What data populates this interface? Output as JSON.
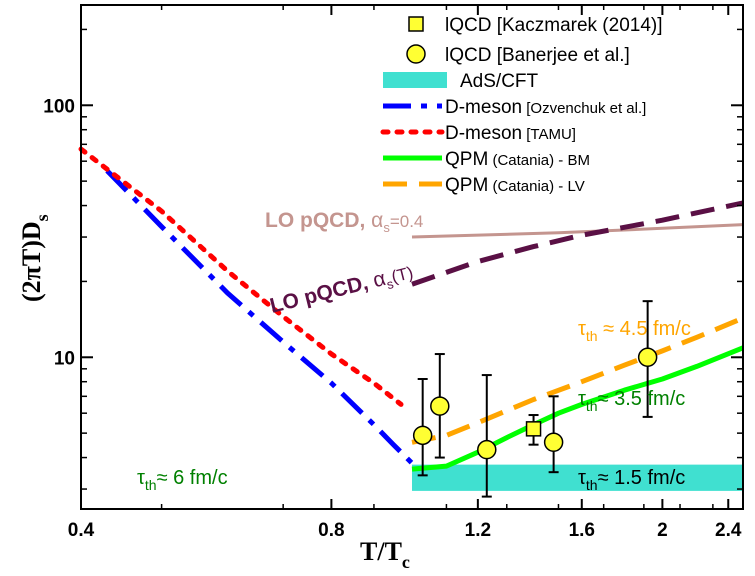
{
  "chart_data": {
    "type": "line",
    "title": "",
    "xlabel": "T/T",
    "xlabel_sub": "c",
    "ylabel": "(2πT)D",
    "ylabel_sub": "s",
    "xscale": "log",
    "yscale": "log",
    "xlim": [
      0.4,
      2.5
    ],
    "ylim": [
      2.5,
      250
    ],
    "x_ticks": [
      0.4,
      0.8,
      1.2,
      1.6,
      2.0,
      2.4
    ],
    "x_tick_labels": [
      "0.4",
      "0.8",
      "1.2",
      "1.6",
      "2",
      "2.4"
    ],
    "y_ticks": [
      10,
      100
    ],
    "y_tick_labels": [
      "10",
      "100"
    ],
    "legend_position": "top-right",
    "legend": [
      {
        "key": "kaczmarek",
        "label": "lQCD [Kaczmarek (2014)]",
        "marker": "square",
        "color": "#ffff33"
      },
      {
        "key": "banerjee",
        "label": "lQCD [Banerjee et al.]",
        "marker": "circle",
        "color": "#ffff33"
      },
      {
        "key": "ads",
        "label": "AdS/CFT",
        "marker": "band",
        "color": "#40e0d0"
      },
      {
        "key": "dmeson_oz",
        "label": "D-meson",
        "label_small": "[Ozvenchuk et al.]",
        "style": "dashdot",
        "color": "#0000ff"
      },
      {
        "key": "dmeson_tamu",
        "label": "D-meson",
        "label_small": "[TAMU]",
        "style": "dotted",
        "color": "#ff0000"
      },
      {
        "key": "qpm_bm",
        "label": "QPM",
        "label_small": "(Catania) - BM",
        "style": "solid",
        "color": "#00ff00"
      },
      {
        "key": "qpm_lv",
        "label": "QPM",
        "label_small": "(Catania) - LV",
        "style": "dashed",
        "color": "#ffa500"
      }
    ],
    "series": [
      {
        "name": "lQCD [Kaczmarek (2014)]",
        "type": "scatter",
        "marker": "square",
        "points": [
          {
            "x": 1.4,
            "y": 5.2,
            "ylo": 4.5,
            "yhi": 5.9
          }
        ]
      },
      {
        "name": "lQCD [Banerjee et al.]",
        "type": "scatter",
        "marker": "circle",
        "points": [
          {
            "x": 1.03,
            "y": 4.9,
            "ylo": 3.4,
            "yhi": 8.2
          },
          {
            "x": 1.08,
            "y": 6.4,
            "ylo": 4.0,
            "yhi": 10.3
          },
          {
            "x": 1.23,
            "y": 4.3,
            "ylo": 2.8,
            "yhi": 8.5
          },
          {
            "x": 1.48,
            "y": 4.6,
            "ylo": 3.5,
            "yhi": 7.0
          },
          {
            "x": 1.92,
            "y": 10.0,
            "ylo": 5.8,
            "yhi": 16.7
          }
        ]
      },
      {
        "name": "AdS/CFT",
        "type": "band",
        "color": "#40e0d0",
        "x": [
          1.0,
          2.5
        ],
        "ylo": 2.95,
        "yhi": 3.75
      },
      {
        "name": "D-meson [Ozvenchuk et al.]",
        "type": "line",
        "style": "dashdot",
        "color": "#0000ff",
        "x": [
          0.43,
          0.5,
          0.6,
          0.7,
          0.8,
          0.9,
          0.95,
          1.0
        ],
        "y": [
          55,
          33,
          18,
          11.5,
          7.9,
          5.4,
          4.5,
          3.8
        ]
      },
      {
        "name": "D-meson [TAMU]",
        "type": "line",
        "style": "dotted",
        "color": "#ff0000",
        "x": [
          0.4,
          0.5,
          0.6,
          0.7,
          0.8,
          0.9,
          0.97
        ],
        "y": [
          67,
          38,
          22,
          14.5,
          10.3,
          7.9,
          6.5
        ]
      },
      {
        "name": "QPM (Catania) - BM",
        "type": "line",
        "style": "solid",
        "color": "#00ff00",
        "x": [
          1.0,
          1.1,
          1.2,
          1.3,
          1.4,
          1.5,
          1.6,
          1.8,
          2.0,
          2.2,
          2.5
        ],
        "y": [
          3.6,
          3.7,
          4.2,
          4.8,
          5.4,
          6.0,
          6.5,
          7.4,
          8.2,
          9.2,
          10.9
        ]
      },
      {
        "name": "QPM (Catania) - LV",
        "type": "line",
        "style": "dashed",
        "color": "#ffa500",
        "x": [
          1.0,
          1.1,
          1.2,
          1.4,
          1.6,
          1.8,
          2.0,
          2.2,
          2.5
        ],
        "y": [
          4.6,
          4.9,
          5.5,
          6.8,
          8.0,
          9.3,
          10.6,
          12.0,
          14.3
        ]
      },
      {
        "name": "LO pQCD, αs=0.4",
        "type": "line",
        "style": "solid",
        "color": "#c4958f",
        "x": [
          1.0,
          1.5,
          2.0,
          2.5
        ],
        "y": [
          30,
          31.2,
          32.5,
          33.6
        ]
      },
      {
        "name": "LO pQCD, αs(T)",
        "type": "line",
        "style": "dashed",
        "color": "#5a1045",
        "x": [
          1.0,
          1.2,
          1.4,
          1.6,
          2.0,
          2.5
        ],
        "y": [
          19.5,
          24,
          27.5,
          30.5,
          35,
          41
        ]
      }
    ],
    "annotations": {
      "lo_const": {
        "main": "LO pQCD, ",
        "alpha": "α",
        "sub": "s",
        "tail": "=0.4",
        "color": "#c4958f"
      },
      "lo_run": {
        "main": "LO pQCD, ",
        "alpha": "α",
        "sub": "s",
        "tail": "(T)",
        "color": "#5a1045"
      },
      "tau_45": {
        "tau": "τ",
        "sub": "th",
        "text": " ≈ 4.5 fm/c",
        "color": "#ffa500"
      },
      "tau_35": {
        "tau": "τ",
        "sub": "th",
        "text": "≈ 3.5 fm/c",
        "color": "#008000"
      },
      "tau_6": {
        "tau": "τ",
        "sub": "th",
        "text": "≈ 6 fm/c",
        "color": "#008000"
      },
      "tau_15": {
        "tau": "τ",
        "sub": "th",
        "text": "≈ 1.5 fm/c",
        "color": "#000000"
      }
    }
  }
}
